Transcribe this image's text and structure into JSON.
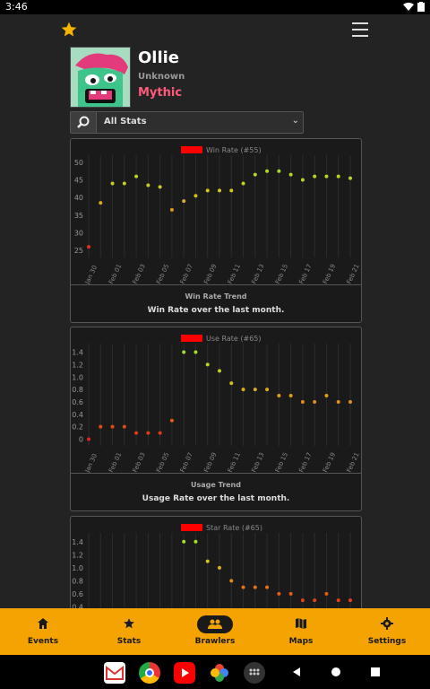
{
  "status": {
    "time": "3:46"
  },
  "brawler": {
    "name": "Ollie",
    "subtitle": "Unknown",
    "rarity": "Mythic"
  },
  "selector": {
    "value": "All Stats"
  },
  "charts": [
    {
      "title": "Win Rate Trend",
      "subtitle": "Win Rate over the last month.",
      "chart_data": {
        "type": "scatter",
        "legend": "Win Rate (#55)",
        "legend_color": "#ff0000",
        "x": [
          "Jan 30",
          "Jan 31",
          "Feb 01",
          "Feb 02",
          "Feb 03",
          "Feb 04",
          "Feb 05",
          "Feb 06",
          "Feb 07",
          "Feb 08",
          "Feb 09",
          "Feb 10",
          "Feb 11",
          "Feb 12",
          "Feb 13",
          "Feb 14",
          "Feb 15",
          "Feb 16",
          "Feb 17",
          "Feb 18",
          "Feb 19",
          "Feb 20",
          "Feb 21"
        ],
        "xticks": [
          "Jan 30",
          "Feb 01",
          "Feb 03",
          "Feb 05",
          "Feb 07",
          "Feb 09",
          "Feb 11",
          "Feb 13",
          "Feb 15",
          "Feb 17",
          "Feb 19",
          "Feb 21"
        ],
        "values": [
          26,
          38.5,
          44,
          44,
          46,
          43.5,
          43,
          36.5,
          39,
          40.5,
          42,
          42,
          42,
          44,
          46.5,
          47.5,
          47.5,
          46.5,
          45,
          46,
          46,
          46,
          45.5
        ],
        "ylim": [
          24,
          51
        ],
        "yticks": [
          25,
          30,
          35,
          40,
          45,
          50
        ]
      }
    },
    {
      "title": "Usage Trend",
      "subtitle": "Usage Rate over the last month.",
      "chart_data": {
        "type": "scatter",
        "legend": "Use Rate (#65)",
        "legend_color": "#ff0000",
        "x": [
          "Jan 30",
          "Jan 31",
          "Feb 01",
          "Feb 02",
          "Feb 03",
          "Feb 04",
          "Feb 05",
          "Feb 06",
          "Feb 07",
          "Feb 08",
          "Feb 09",
          "Feb 10",
          "Feb 11",
          "Feb 12",
          "Feb 13",
          "Feb 14",
          "Feb 15",
          "Feb 16",
          "Feb 17",
          "Feb 18",
          "Feb 19",
          "Feb 20",
          "Feb 21"
        ],
        "xticks": [
          "Jan 30",
          "Feb 01",
          "Feb 03",
          "Feb 05",
          "Feb 07",
          "Feb 09",
          "Feb 11",
          "Feb 13",
          "Feb 15",
          "Feb 17",
          "Feb 19",
          "Feb 21"
        ],
        "values": [
          0,
          0.2,
          0.2,
          0.2,
          0.1,
          0.1,
          0.1,
          0.3,
          1.4,
          1.4,
          1.2,
          1.1,
          0.9,
          0.8,
          0.8,
          0.8,
          0.7,
          0.7,
          0.6,
          0.6,
          0.7,
          0.6,
          0.6
        ],
        "ylim": [
          -0.05,
          1.48
        ],
        "yticks": [
          0,
          0.2,
          0.4,
          0.6,
          0.8,
          1.0,
          1.2,
          1.4
        ]
      }
    },
    {
      "title": "",
      "subtitle": "",
      "chart_data": {
        "type": "scatter",
        "legend": "Star Rate (#65)",
        "legend_color": "#ff0000",
        "x": [
          "Jan 30",
          "Jan 31",
          "Feb 01",
          "Feb 02",
          "Feb 03",
          "Feb 04",
          "Feb 05",
          "Feb 06",
          "Feb 07",
          "Feb 08",
          "Feb 09",
          "Feb 10",
          "Feb 11",
          "Feb 12",
          "Feb 13",
          "Feb 14",
          "Feb 15",
          "Feb 16",
          "Feb 17",
          "Feb 18",
          "Feb 19",
          "Feb 20",
          "Feb 21"
        ],
        "xticks": [],
        "values": [
          null,
          null,
          null,
          null,
          null,
          null,
          null,
          null,
          1.4,
          1.4,
          1.1,
          1.0,
          0.8,
          0.7,
          0.7,
          0.7,
          0.6,
          0.6,
          0.5,
          0.5,
          0.6,
          0.5,
          0.5
        ],
        "ylim": [
          0.35,
          1.48
        ],
        "yticks": [
          0.4,
          0.6,
          0.8,
          1.0,
          1.2,
          1.4
        ]
      }
    }
  ],
  "nav": [
    {
      "label": "Events",
      "icon": "home-icon"
    },
    {
      "label": "Stats",
      "icon": "star-icon"
    },
    {
      "label": "Brawlers",
      "icon": "group-icon"
    },
    {
      "label": "Maps",
      "icon": "map-icon"
    },
    {
      "label": "Settings",
      "icon": "gear-icon"
    }
  ],
  "colors": {
    "accent": "#f4a300",
    "background": "#232323",
    "legend": "#ff0000"
  }
}
